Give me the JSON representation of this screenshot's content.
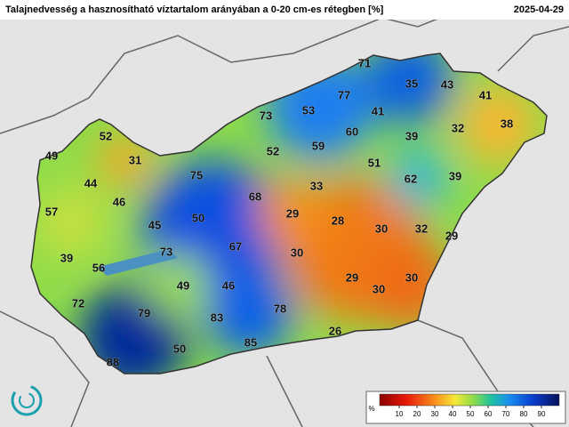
{
  "header": {
    "title": "Talajnedvesség a hasznosítható víztartalom arányában a 0-20 cm-es rétegben [%]",
    "date": "2025-04-29"
  },
  "stations": [
    71,
    35,
    43,
    41,
    77,
    53,
    41,
    73,
    38,
    32,
    60,
    39,
    52,
    59,
    52,
    31,
    49,
    51,
    75,
    62,
    39,
    44,
    33,
    68,
    46,
    57,
    29,
    50,
    28,
    45,
    30,
    32,
    29,
    73,
    67,
    30,
    39,
    56,
    30,
    29,
    30,
    49,
    46,
    72,
    78,
    79,
    83,
    26,
    85,
    50,
    88
  ],
  "legend": {
    "unit": "%",
    "ticks": [
      10,
      20,
      30,
      40,
      50,
      60,
      70,
      80,
      90
    ]
  }
}
